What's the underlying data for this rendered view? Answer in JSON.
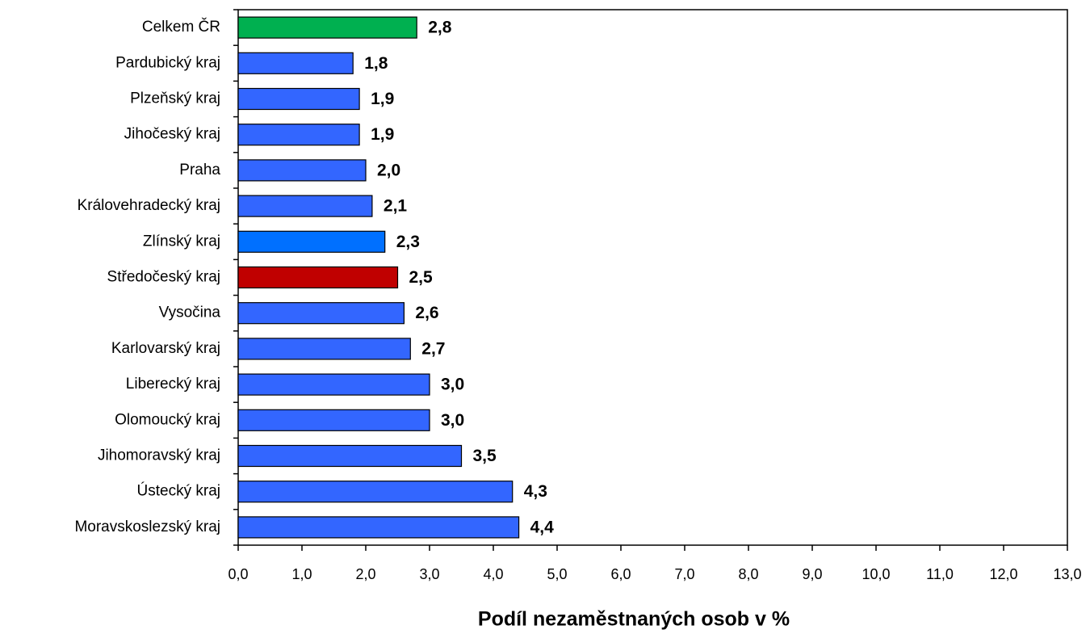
{
  "chart_data": {
    "type": "barh",
    "x_label": "Podíl nezaměstnaných osob v %",
    "categories": [
      "Celkem ČR",
      "Pardubický kraj",
      "Plzeňský kraj",
      "Jihočeský kraj",
      "Praha",
      "Královehradecký kraj",
      "Zlínský kraj",
      "Středočeský kraj",
      "Vysočina",
      "Karlovarský kraj",
      "Liberecký kraj",
      "Olomoucký kraj",
      "Jihomoravský kraj",
      "Ústecký kraj",
      "Moravskoslezský kraj"
    ],
    "values": [
      2.8,
      1.8,
      1.9,
      1.9,
      2.0,
      2.1,
      2.3,
      2.5,
      2.6,
      2.7,
      3.0,
      3.0,
      3.5,
      4.3,
      4.4
    ],
    "value_labels": [
      "2,8",
      "1,8",
      "1,9",
      "1,9",
      "2,0",
      "2,1",
      "2,3",
      "2,5",
      "2,6",
      "2,7",
      "3,0",
      "3,0",
      "3,5",
      "4,3",
      "4,4"
    ],
    "colors": [
      "#00b050",
      "#3366ff",
      "#3366ff",
      "#3366ff",
      "#3366ff",
      "#3366ff",
      "#0070ff",
      "#c00000",
      "#3366ff",
      "#3366ff",
      "#3366ff",
      "#3366ff",
      "#3366ff",
      "#3366ff",
      "#3366ff"
    ],
    "xlim": [
      0,
      13
    ],
    "xticks": [
      {
        "value": 0,
        "label": "0,0"
      },
      {
        "value": 1,
        "label": "1,0"
      },
      {
        "value": 2,
        "label": "2,0"
      },
      {
        "value": 3,
        "label": "3,0"
      },
      {
        "value": 4,
        "label": "4,0"
      },
      {
        "value": 5,
        "label": "5,0"
      },
      {
        "value": 6,
        "label": "6,0"
      },
      {
        "value": 7,
        "label": "7,0"
      },
      {
        "value": 8,
        "label": "8,0"
      },
      {
        "value": 9,
        "label": "9,0"
      },
      {
        "value": 10,
        "label": "10,0"
      },
      {
        "value": 11,
        "label": "11,0"
      },
      {
        "value": 12,
        "label": "12,0"
      },
      {
        "value": 13,
        "label": "13,0"
      }
    ]
  }
}
